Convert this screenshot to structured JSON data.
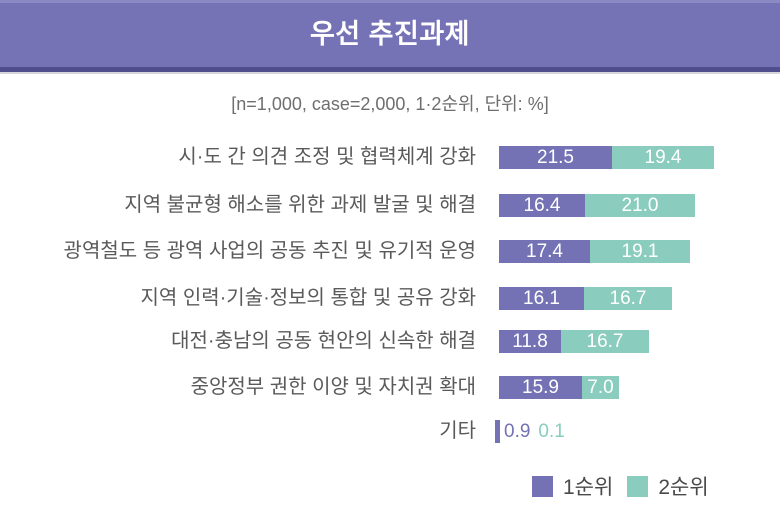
{
  "header": {
    "title": "우선 추진과제"
  },
  "subtitle": "[n=1,000, case=2,000, 1·2순위, 단위: %]",
  "legend": {
    "items": [
      {
        "label": "1순위",
        "color": "#7472b4"
      },
      {
        "label": "2순위",
        "color": "#8accbd"
      }
    ]
  },
  "colors": {
    "header_bg": "#7573b5",
    "header_top_edge": "#8b89c3",
    "header_bottom_edge": "#514e8d",
    "header_shadow": "#d8d6dd",
    "series1": "#7472b4",
    "series2": "#8accbd",
    "label_text": "#5a5a5a",
    "subtitle_text": "#6e6e6e",
    "legend_text": "#4a4a4a",
    "value_text": "#ffffff"
  },
  "chart_data": {
    "type": "bar",
    "orientation": "horizontal-stacked",
    "title": "우선 추진과제",
    "note": "[n=1,000, case=2,000, 1·2순위, 단위: %]",
    "unit": "%",
    "categories": [
      "시·도 간 의견 조정 및 협력체계 강화",
      "지역 불균형 해소를 위한 과제 발굴 및 해결",
      "광역철도 등 광역 사업의 공동 추진 및 유기적 운영",
      "지역 인력·기술·정보의 통합 및 공유 강화",
      "대전·충남의 공동 현안의 신속한 해결",
      "중앙정부 권한 이양 및 자치권 확대",
      "기타"
    ],
    "series": [
      {
        "name": "1순위",
        "values": [
          21.5,
          16.4,
          17.4,
          16.1,
          11.8,
          15.9,
          0.9
        ]
      },
      {
        "name": "2순위",
        "values": [
          19.4,
          21.0,
          19.1,
          16.7,
          16.7,
          7.0,
          0.1
        ]
      }
    ],
    "legend_position": "bottom-right",
    "grid": false,
    "value_labels": "inside-white; last row values shown outside in series colors",
    "outside_value_rows": [
      6
    ]
  }
}
